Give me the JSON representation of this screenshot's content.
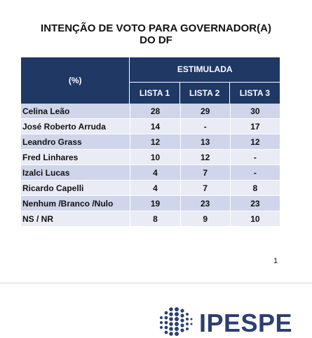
{
  "title": {
    "line1": "INTENÇÃO DE VOTO PARA GOVERNADOR(A)",
    "line2": "DO DF"
  },
  "table": {
    "corner_label": "(%)",
    "group_header": "ESTIMULADA",
    "columns": [
      "LISTA 1",
      "LISTA 2",
      "LISTA 3"
    ],
    "rows": [
      {
        "label": "Celina Leão",
        "values": [
          "28",
          "29",
          "30"
        ]
      },
      {
        "label": "José Roberto Arruda",
        "values": [
          "14",
          "-",
          "17"
        ]
      },
      {
        "label": "Leandro Grass",
        "values": [
          "12",
          "13",
          "12"
        ]
      },
      {
        "label": "Fred Linhares",
        "values": [
          "10",
          "12",
          "-"
        ]
      },
      {
        "label": "Izalci Lucas",
        "values": [
          "4",
          "7",
          "-"
        ]
      },
      {
        "label": "Ricardo Capelli",
        "values": [
          "4",
          "7",
          "8"
        ]
      },
      {
        "label": "Nenhum /Branco /Nulo",
        "values": [
          "19",
          "23",
          "23"
        ]
      },
      {
        "label": "NS / NR",
        "values": [
          "8",
          "9",
          "10"
        ]
      }
    ]
  },
  "page_number": "1",
  "logo": {
    "text": "IPESPE"
  },
  "colors": {
    "header_bg": "#1f3864",
    "row_odd": "#cfd5ea",
    "row_even": "#e9ebf5",
    "logo": "#2b3f72"
  }
}
